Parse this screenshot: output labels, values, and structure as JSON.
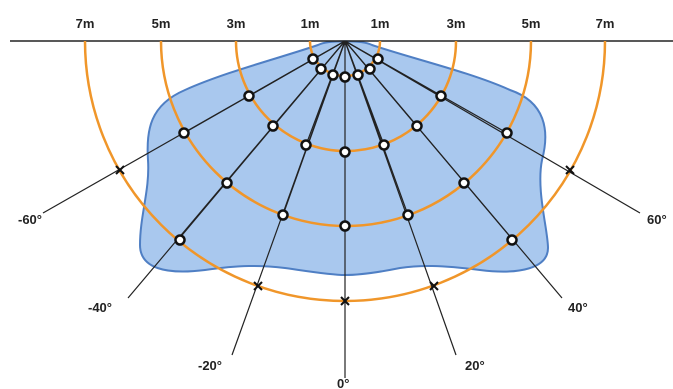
{
  "title": "",
  "distance_labels": [
    "7m",
    "5m",
    "3m",
    "1m",
    "1m",
    "3m",
    "5m",
    "7m"
  ],
  "angle_labels": [
    "-60°",
    "-40°",
    "-20°",
    "0°",
    "20°",
    "40°",
    "60°"
  ],
  "colors": {
    "zone_fill": "#a9c8ee",
    "zone_stroke": "#4f7fc4",
    "range_arc": "#f0962a",
    "ray": "#222222",
    "point_fill": "#ffffff",
    "point_stroke": "#111111",
    "baseline": "#222222"
  },
  "markers": {
    "circle": "detection-point",
    "cross": "limit-point"
  }
}
